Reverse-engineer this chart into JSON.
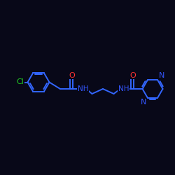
{
  "bg_color": "#080818",
  "bond_color": "#3366ff",
  "atom_colors": {
    "Cl": "#22cc22",
    "O": "#ff3333",
    "N": "#3355ff",
    "C": "#3366ff"
  },
  "bond_width": 1.4,
  "font_size": 7.5,
  "fig_width": 2.5,
  "fig_height": 2.5,
  "dpi": 100,
  "xlim": [
    0,
    10
  ],
  "ylim": [
    0,
    10
  ]
}
